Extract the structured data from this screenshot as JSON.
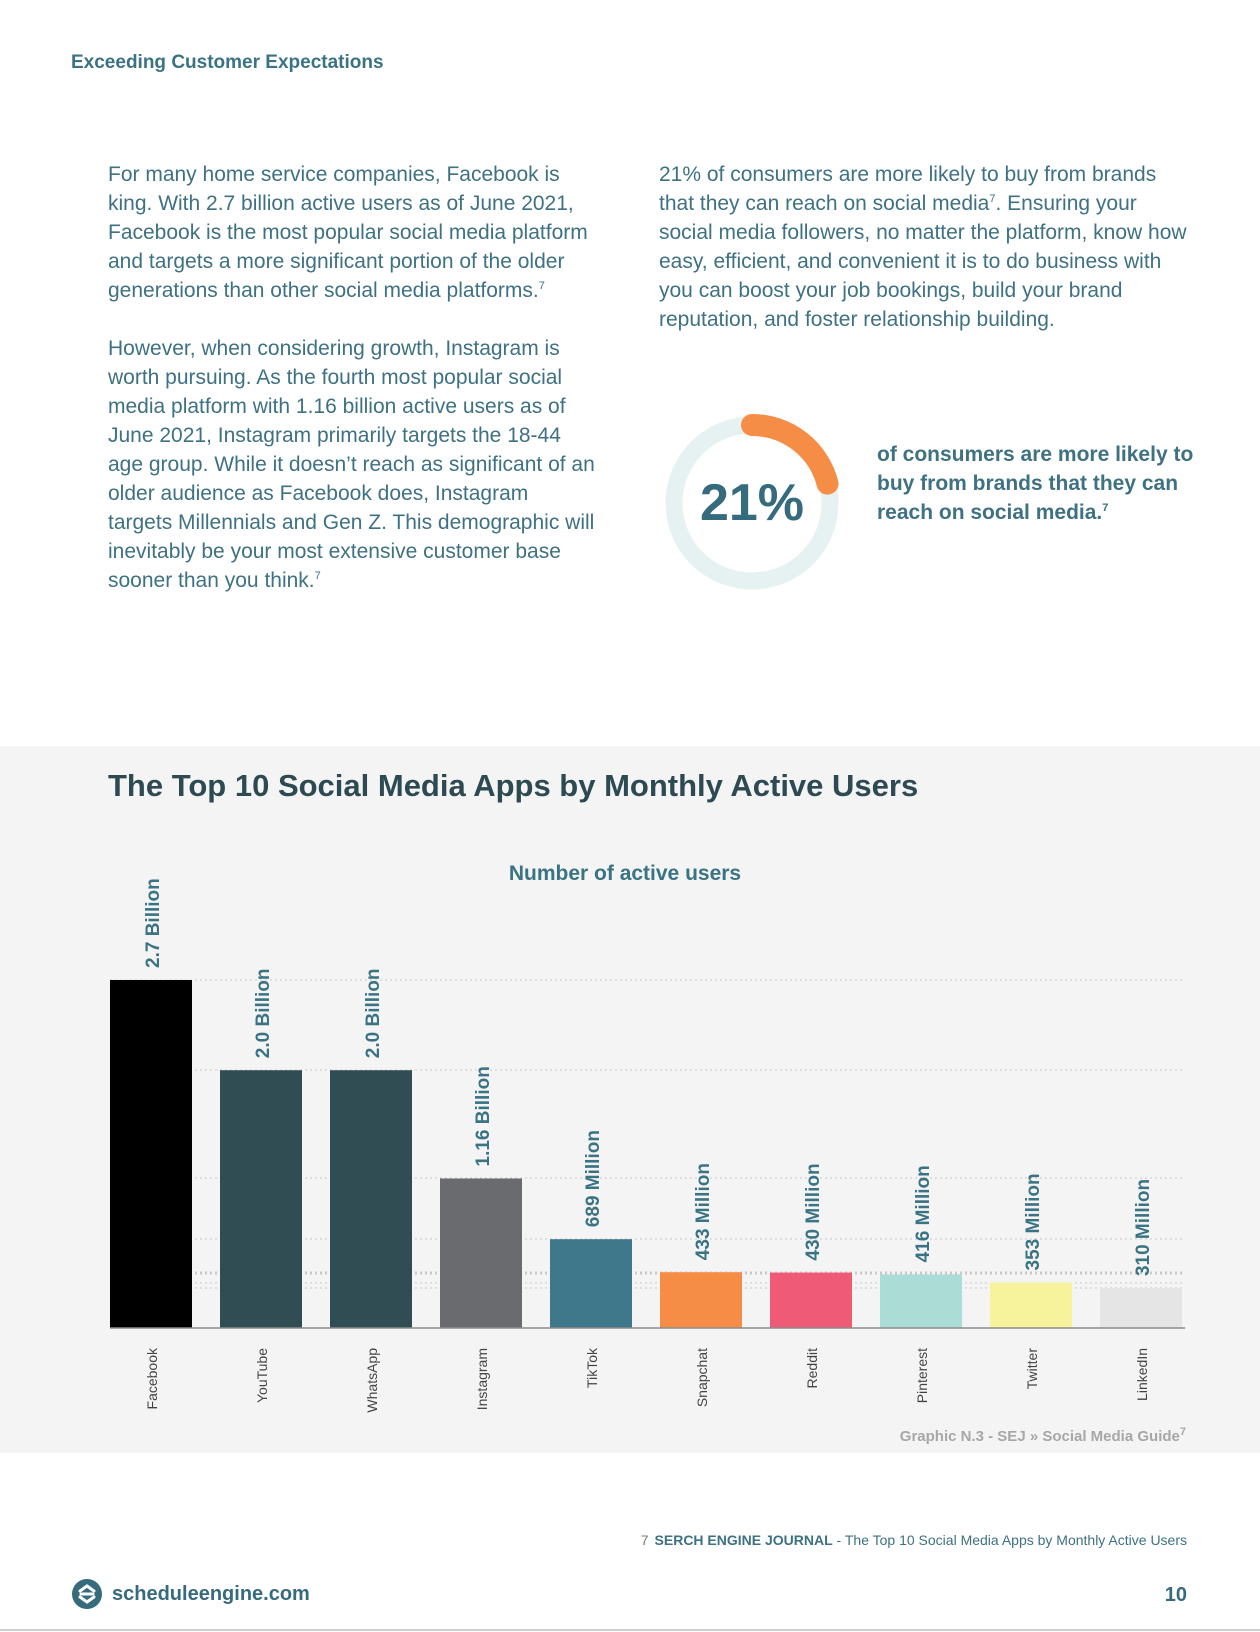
{
  "header": {
    "title": "Exceeding Customer Expectations"
  },
  "left_column": {
    "p1": "For many home service companies, Facebook is king. With 2.7 billion active users as of June 2021, Facebook is the most popular social media platform and targets a more significant portion of the older generations than other social media platforms.",
    "p1_ref": "7",
    "p2": "However, when considering growth, Instagram is worth pursuing. As the fourth most popular social media platform with 1.16 billion active users as of June 2021, Instagram primarily targets the 18-44 age group. While it doesn’t reach as significant of an older audience as Facebook does, Instagram targets Millennials and Gen Z. This demographic will inevitably be your most extensive customer base sooner than you think.",
    "p2_ref": "7"
  },
  "right_column": {
    "text_before_ref": "21% of consumers are more likely to buy from brands that they can reach on social media",
    "ref": "7",
    "text_after_ref": ". Ensuring your social media followers, no matter the platform, know how easy, efficient, and convenient it is to do business with you can boost your job bookings, build your brand reputation, and foster relationship building."
  },
  "stat": {
    "value": "21%",
    "fraction": 0.21,
    "text": "of consumers are more likely to buy from brands that they can reach on social media.",
    "ref": "7",
    "ring_color": "#e6f2f1",
    "arc_color": "#f58d46"
  },
  "chart_data": {
    "type": "bar",
    "title": "The Top 10 Social Media Apps by Monthly Active Users",
    "subtitle": "Number of active users",
    "categories": [
      "Facebook",
      "YouTube",
      "WhatsApp",
      "Instagram",
      "TikTok",
      "Snapchat",
      "Reddit",
      "Pinterest",
      "Twitter",
      "LinkedIn"
    ],
    "values_millions": [
      2700,
      2000,
      2000,
      1160,
      689,
      433,
      430,
      416,
      353,
      310
    ],
    "labels": [
      "2.7 Billion",
      "2.0 Billion",
      "2.0 Billion",
      "1.16 Billion",
      "689 Million",
      "433 Million",
      "430 Million",
      "416 Million",
      "353 Million",
      "310 Million"
    ],
    "colors": [
      "#000000",
      "#2f4d52",
      "#2f4d52",
      "#6a6b6e",
      "#40788b",
      "#f58d46",
      "#ef5a76",
      "#acdcd6",
      "#f7f29c",
      "#e5e5e5"
    ],
    "ylim": [
      0,
      2700
    ],
    "grid": true,
    "source": "Graphic N.3 - SEJ » Social Media Guide",
    "source_ref": "7"
  },
  "footnote": {
    "number": "7",
    "source": "SERCH ENGINE JOURNAL",
    "title": " - The Top 10 Social Media Apps by Monthly Active Users"
  },
  "footer": {
    "brand": "scheduleengine.com",
    "page": "10"
  }
}
